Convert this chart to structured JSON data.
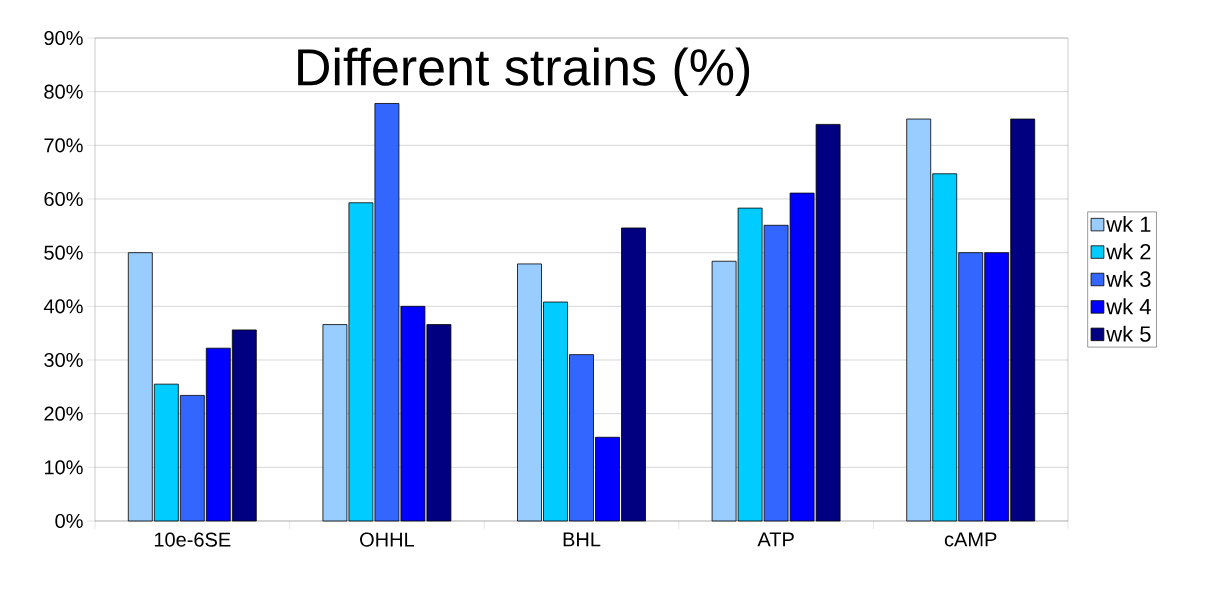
{
  "chart_data": {
    "type": "bar",
    "title": "Different strains (%)",
    "categories": [
      "10e-6SE",
      "OHHL",
      "BHL",
      "ATP",
      "cAMP"
    ],
    "series": [
      {
        "name": "wk 1",
        "color": "#99ccff",
        "values": [
          50,
          36.6,
          47.9,
          48.4,
          74.9
        ]
      },
      {
        "name": "wk 2",
        "color": "#00ccff",
        "values": [
          25.5,
          59.3,
          40.8,
          58.3,
          64.7
        ]
      },
      {
        "name": "wk 3",
        "color": "#3366ff",
        "values": [
          23.4,
          77.8,
          31.0,
          55.1,
          50
        ]
      },
      {
        "name": "wk 4",
        "color": "#0000ff",
        "values": [
          32.2,
          40,
          15.6,
          61.1,
          50
        ]
      },
      {
        "name": "wk 5",
        "color": "#000080",
        "values": [
          35.6,
          36.6,
          54.6,
          73.9,
          74.9
        ]
      }
    ],
    "ylim": [
      0,
      90
    ],
    "yticks": [
      {
        "value": 0,
        "label": "0%"
      },
      {
        "value": 10,
        "label": "10%"
      },
      {
        "value": 20,
        "label": "20%"
      },
      {
        "value": 30,
        "label": "30%"
      },
      {
        "value": 40,
        "label": "40%"
      },
      {
        "value": 50,
        "label": "50%"
      },
      {
        "value": 60,
        "label": "60%"
      },
      {
        "value": 70,
        "label": "70%"
      },
      {
        "value": 80,
        "label": "80%"
      },
      {
        "value": 90,
        "label": "90%"
      }
    ],
    "grid": "y",
    "legend": "right"
  }
}
